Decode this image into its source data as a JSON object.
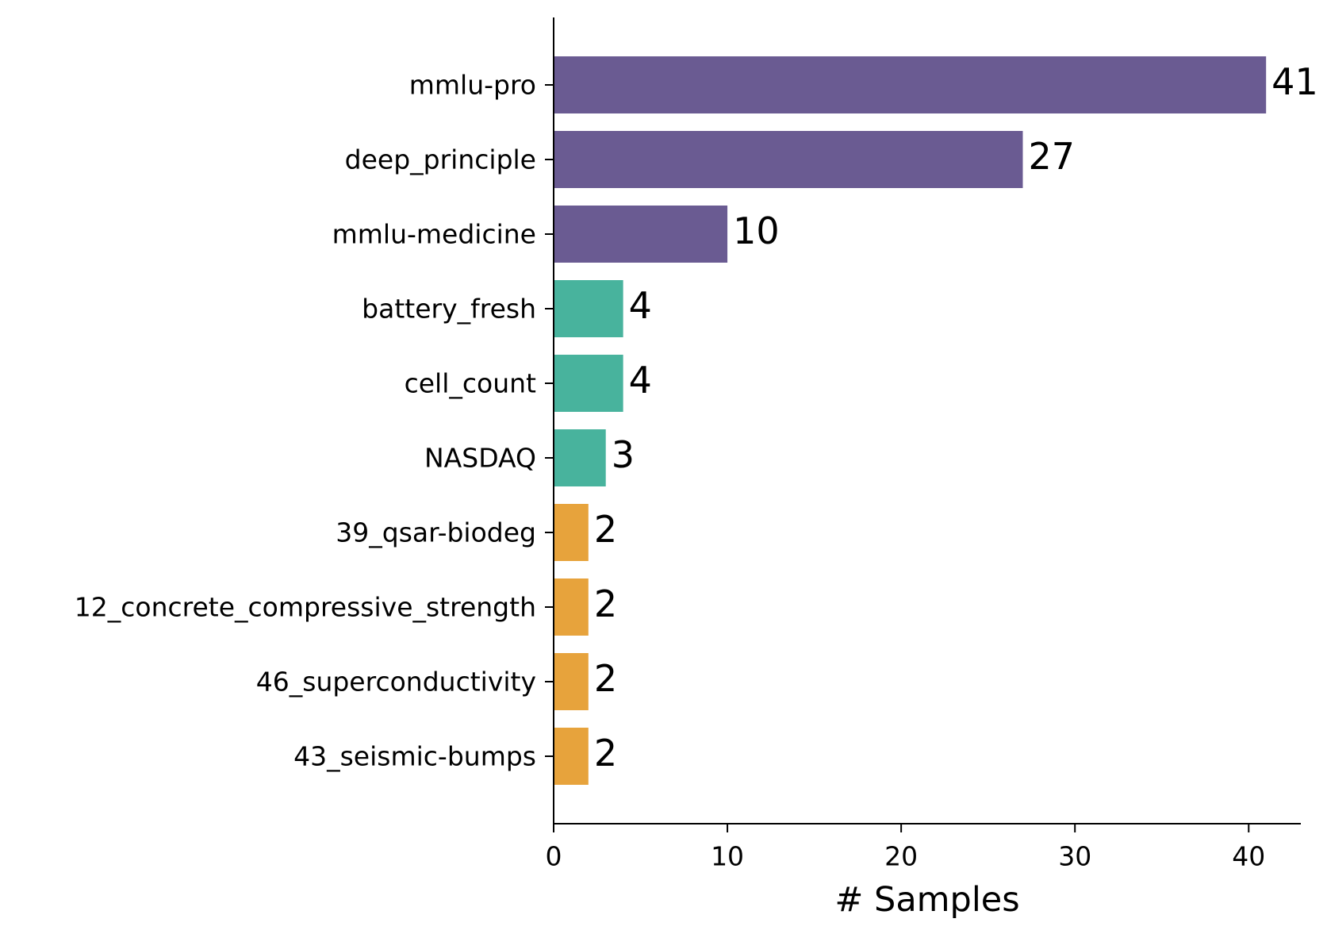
{
  "chart_data": {
    "type": "bar",
    "orientation": "horizontal",
    "title": "",
    "xlabel": "# Samples",
    "ylabel": "",
    "xlim": [
      0,
      43
    ],
    "x_ticks": [
      0,
      10,
      20,
      30,
      40
    ],
    "grid": false,
    "legend": "none",
    "categories": [
      "mmlu-pro",
      "deep_principle",
      "mmlu-medicine",
      "battery_fresh",
      "cell_count",
      "NASDAQ",
      "39_qsar-biodeg",
      "12_concrete_compressive_strength",
      "46_superconductivity",
      "43_seismic-bumps"
    ],
    "values": [
      41,
      27,
      10,
      4,
      4,
      3,
      2,
      2,
      2,
      2
    ],
    "bar_colors": [
      "#6a5b92",
      "#6a5b92",
      "#6a5b92",
      "#48b39d",
      "#48b39d",
      "#48b39d",
      "#e7a33c",
      "#e7a33c",
      "#e7a33c",
      "#e7a33c"
    ],
    "data_labels": [
      "41",
      "27",
      "10",
      "4",
      "4",
      "3",
      "2",
      "2",
      "2",
      "2"
    ]
  }
}
